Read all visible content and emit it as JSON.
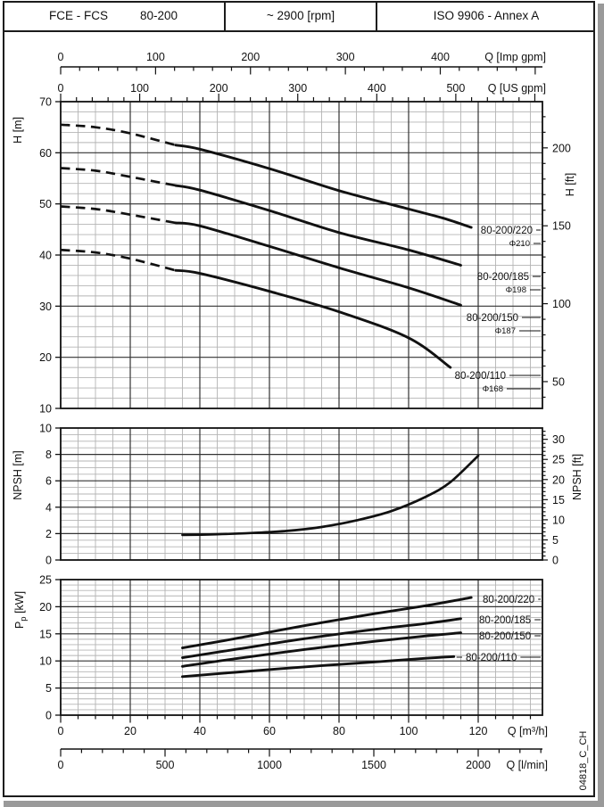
{
  "header": {
    "product": "FCE - FCS",
    "size": "80-200",
    "speed": "~ 2900 [rpm]",
    "standard": "ISO 9906 - Annex A"
  },
  "side_code": "04818_C_CH",
  "colors": {
    "curve": "#111111",
    "major_grid": "#333333",
    "minor_grid": "#b4b4b4",
    "border": "#111111",
    "text": "#111111"
  },
  "x_axes": {
    "imp_gpm": {
      "label": "Q [Imp gpm]",
      "major_ticks": [
        0,
        100,
        200,
        300,
        400
      ],
      "minor_step": 20,
      "max_minor": 500,
      "m3h_per_unit": 0.27276
    },
    "us_gpm": {
      "label": "Q [US gpm]",
      "major_ticks": [
        0,
        100,
        200,
        300,
        400,
        500
      ],
      "minor_step": 20,
      "max_minor": 600,
      "m3h_per_unit": 0.22712
    },
    "m3h": {
      "label": "Q [m³/h]",
      "major_ticks": [
        0,
        20,
        40,
        60,
        80,
        100,
        120
      ],
      "minor_step": 5,
      "max_minor": 135,
      "m3h_per_unit": 1
    },
    "lmin": {
      "label": "Q [l/min]",
      "major_ticks": [
        0,
        500,
        1000,
        1500,
        2000
      ],
      "minor_step": 100,
      "max_minor": 2300,
      "m3h_per_unit": 0.06
    }
  },
  "chart_data": [
    {
      "id": "head",
      "type": "line",
      "xlabel": "Q [m³/h]",
      "ylabel": "H [m]",
      "ylabel_right": "H [ft]",
      "ylim": [
        10,
        70
      ],
      "yticks": [
        10,
        20,
        30,
        40,
        50,
        60,
        70
      ],
      "y_minor_step": 2,
      "right_ticks": [
        50,
        100,
        150,
        200
      ],
      "right_minor_step": 10,
      "right_unit_per_m": 3.28084,
      "series": [
        {
          "name": "80-200/220",
          "impeller": "Φ210",
          "dash_until_q": 33,
          "points": [
            [
              0,
              65.5
            ],
            [
              10,
              65.0
            ],
            [
              20,
              63.8
            ],
            [
              33,
              61.5
            ],
            [
              40,
              60.7
            ],
            [
              60,
              56.9
            ],
            [
              80,
              52.6
            ],
            [
              100,
              49.0
            ],
            [
              110,
              47.2
            ],
            [
              118,
              45.4
            ]
          ]
        },
        {
          "name": "80-200/185",
          "impeller": "Φ198",
          "dash_until_q": 33,
          "points": [
            [
              0,
              57.0
            ],
            [
              10,
              56.5
            ],
            [
              20,
              55.3
            ],
            [
              33,
              53.6
            ],
            [
              40,
              52.7
            ],
            [
              60,
              48.7
            ],
            [
              80,
              44.4
            ],
            [
              100,
              41.0
            ],
            [
              115,
              38.0
            ]
          ]
        },
        {
          "name": "80-200/150",
          "impeller": "Φ187",
          "dash_until_q": 33,
          "points": [
            [
              0,
              49.5
            ],
            [
              10,
              49.0
            ],
            [
              20,
              47.9
            ],
            [
              33,
              46.3
            ],
            [
              40,
              45.7
            ],
            [
              60,
              41.7
            ],
            [
              80,
              37.5
            ],
            [
              100,
              33.6
            ],
            [
              115,
              30.2
            ]
          ]
        },
        {
          "name": "80-200/110",
          "impeller": "Φ168",
          "dash_until_q": 33,
          "points": [
            [
              0,
              41.0
            ],
            [
              10,
              40.5
            ],
            [
              20,
              39.3
            ],
            [
              33,
              37.0
            ],
            [
              40,
              36.4
            ],
            [
              60,
              32.9
            ],
            [
              80,
              28.9
            ],
            [
              100,
              23.8
            ],
            [
              112,
              18.0
            ]
          ]
        }
      ]
    },
    {
      "id": "npsh",
      "type": "line",
      "xlabel": "Q [m³/h]",
      "ylabel": "NPSH [m]",
      "ylabel_right": "NPSH [ft]",
      "ylim": [
        0,
        10
      ],
      "yticks": [
        0,
        2,
        4,
        6,
        8,
        10
      ],
      "y_minor_step": 0.5,
      "right_ticks": [
        0,
        5,
        10,
        15,
        20,
        25,
        30
      ],
      "right_minor_step": 1,
      "right_unit_per_m": 3.28084,
      "series": [
        {
          "name": "NPSH",
          "points": [
            [
              35,
              1.9
            ],
            [
              45,
              1.95
            ],
            [
              55,
              2.05
            ],
            [
              65,
              2.2
            ],
            [
              75,
              2.5
            ],
            [
              85,
              3.0
            ],
            [
              95,
              3.7
            ],
            [
              105,
              4.8
            ],
            [
              112,
              5.9
            ],
            [
              120,
              7.9
            ]
          ]
        }
      ]
    },
    {
      "id": "power",
      "type": "line",
      "xlabel": "Q [m³/h]",
      "ylabel": "P_p [kW]",
      "ylim": [
        0,
        25
      ],
      "yticks": [
        0,
        5,
        10,
        15,
        20,
        25
      ],
      "y_minor_step": 1,
      "series": [
        {
          "name": "80-200/220",
          "points": [
            [
              35,
              12.4
            ],
            [
              50,
              14.1
            ],
            [
              70,
              16.5
            ],
            [
              90,
              18.7
            ],
            [
              105,
              20.2
            ],
            [
              118,
              21.7
            ]
          ]
        },
        {
          "name": "80-200/185",
          "points": [
            [
              35,
              10.6
            ],
            [
              50,
              12.1
            ],
            [
              70,
              14.1
            ],
            [
              90,
              15.8
            ],
            [
              105,
              16.9
            ],
            [
              115,
              17.8
            ]
          ]
        },
        {
          "name": "80-200/150",
          "points": [
            [
              35,
              9.0
            ],
            [
              50,
              10.4
            ],
            [
              70,
              12.1
            ],
            [
              90,
              13.6
            ],
            [
              105,
              14.6
            ],
            [
              115,
              15.2
            ]
          ]
        },
        {
          "name": "80-200/110",
          "points": [
            [
              35,
              7.1
            ],
            [
              50,
              7.9
            ],
            [
              70,
              8.9
            ],
            [
              90,
              9.8
            ],
            [
              105,
              10.5
            ],
            [
              113,
              10.8
            ]
          ]
        }
      ]
    }
  ]
}
